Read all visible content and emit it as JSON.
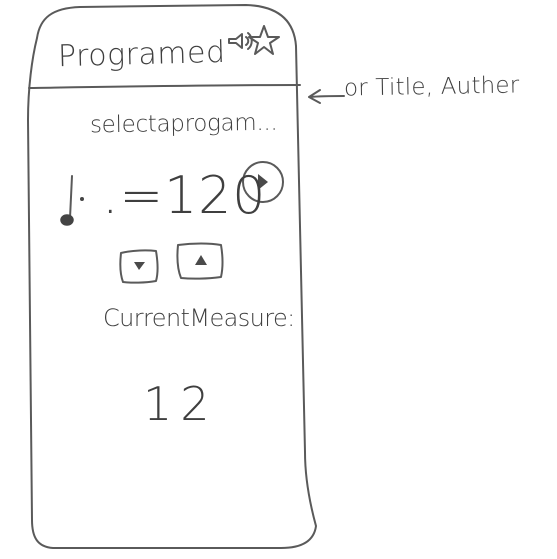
{
  "header": {
    "title": "Programed",
    "icons": [
      "speaker-icon",
      "star-icon"
    ]
  },
  "program": {
    "selector_placeholder": "selectaprogam..."
  },
  "tempo": {
    "equals_bpm": ".=120",
    "note_icon": "dotted-quarter-note-icon",
    "play_icon": "play-icon"
  },
  "controls": {
    "down_icon": "triangle-down-icon",
    "up_icon": "triangle-up-icon"
  },
  "measure": {
    "label": "CurrentMeasure:",
    "value": "12"
  },
  "annotation": {
    "text": "or Title, Auther"
  },
  "colors": {
    "ink": "#3a3a3a",
    "paper": "#ffffff"
  }
}
